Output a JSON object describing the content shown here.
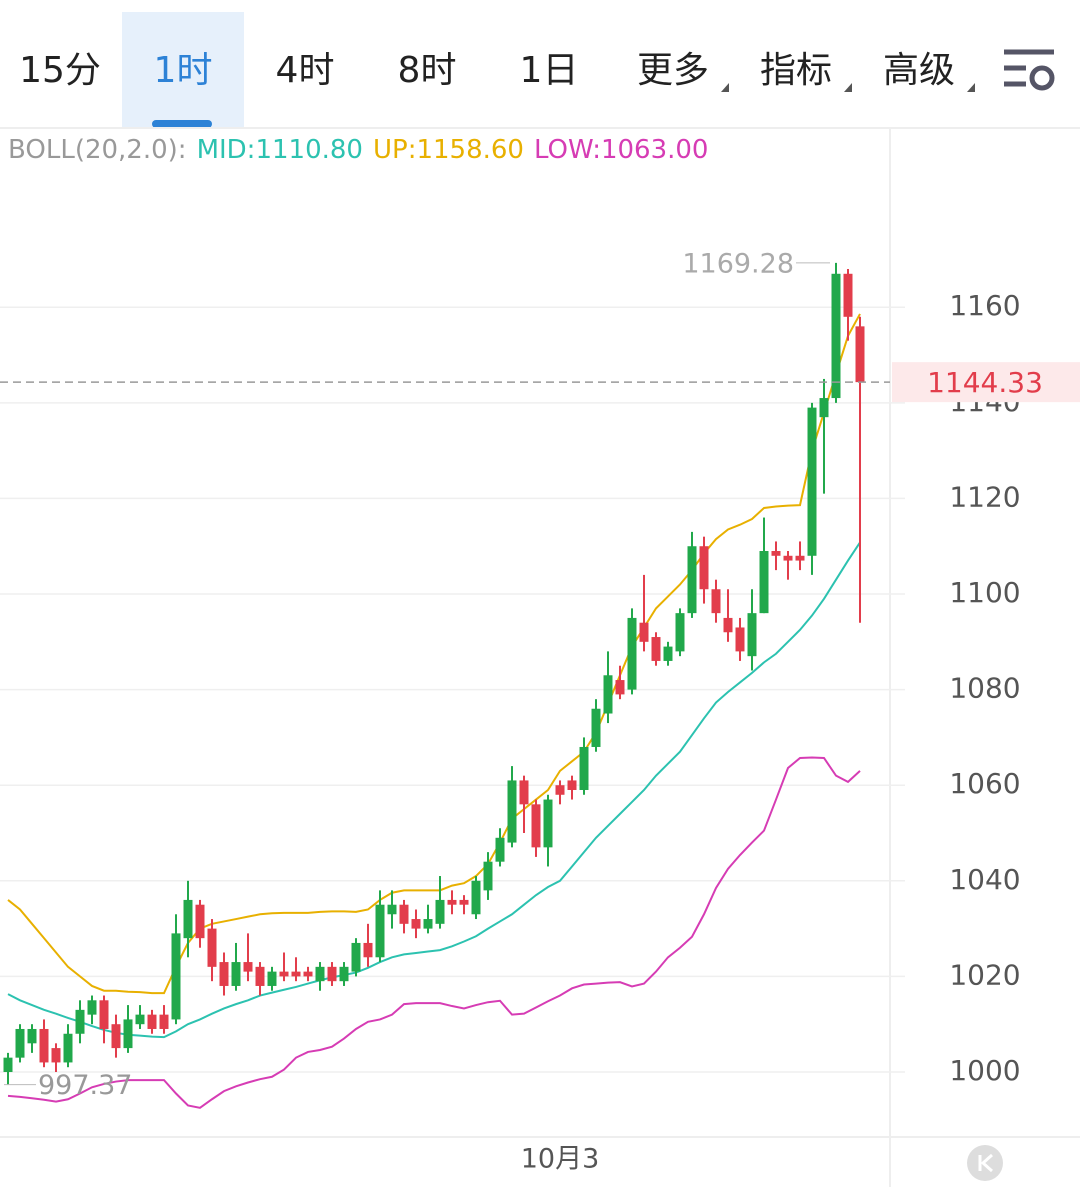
{
  "tabs": [
    "15分",
    "1时",
    "4时",
    "8时",
    "1日",
    "更多",
    "指标",
    "高级"
  ],
  "active_tab": 1,
  "chart_data": {
    "type": "candlestick",
    "indicator": "BOLL(20,2.0):",
    "up_color": "#21a84b",
    "down_color": "#e23d4b",
    "categories": [
      null,
      null,
      null,
      null,
      null,
      null,
      null,
      null,
      null,
      null,
      null,
      null,
      null,
      null,
      null,
      null,
      null,
      null,
      null,
      null,
      null,
      null,
      null,
      null,
      null,
      null,
      null,
      null,
      null,
      null,
      null,
      null,
      null,
      null,
      null,
      null,
      null,
      null,
      null,
      null,
      null,
      null,
      null,
      null,
      null,
      null,
      "10月3",
      null,
      null,
      null,
      null,
      null,
      null,
      null,
      null,
      null,
      null,
      null,
      null,
      null,
      null,
      null,
      null,
      null,
      null,
      null,
      null,
      null,
      null,
      null,
      null,
      null
    ],
    "open": [
      1000,
      1003,
      1006,
      1009,
      1005,
      1002,
      1008,
      1012,
      1015,
      1010,
      1005,
      1010,
      1012,
      1012,
      1011,
      1028,
      1035,
      1030,
      1023,
      1018,
      1023,
      1022,
      1018,
      1021,
      1021,
      1021,
      1019,
      1022,
      1019,
      1021,
      1027,
      1024,
      1033,
      1035,
      1032,
      1030,
      1031,
      1036,
      1036,
      1033,
      1038,
      1044,
      1048,
      1061,
      1056,
      1047,
      1060,
      1061,
      1059,
      1068,
      1075,
      1082,
      1080,
      1094,
      1091,
      1086,
      1088,
      1096,
      1110,
      1101,
      1095,
      1093,
      1087,
      1096,
      1109,
      1108,
      1108,
      1108,
      1137,
      1141,
      1167,
      1156
    ],
    "high": [
      1004,
      1010,
      1010,
      1011,
      1006,
      1010,
      1015,
      1016,
      1016,
      1012,
      1014,
      1014,
      1013,
      1014,
      1033,
      1040,
      1036,
      1032,
      1025,
      1027,
      1029,
      1023,
      1022,
      1025,
      1024,
      1022,
      1023,
      1023,
      1023,
      1028,
      1031,
      1038,
      1038,
      1036,
      1034,
      1035,
      1041,
      1038,
      1037,
      1041,
      1046,
      1051,
      1064,
      1062,
      1057,
      1058,
      1061,
      1062,
      1070,
      1078,
      1088,
      1085,
      1097,
      1104,
      1092,
      1090,
      1097,
      1113,
      1112,
      1103,
      1101,
      1095,
      1101,
      1116,
      1111,
      1109,
      1111,
      1140,
      1145,
      1169.28,
      1168,
      1158
    ],
    "low": [
      997.37,
      1002,
      1004,
      1001,
      1000,
      1001,
      1006,
      1010,
      1006,
      1003,
      1004,
      1009,
      1008,
      1008,
      1010,
      1024,
      1026,
      1019,
      1016,
      1017,
      1019,
      1016,
      1017,
      1019,
      1019,
      1019,
      1017,
      1018,
      1018,
      1020,
      1022,
      1023,
      1030,
      1029,
      1028,
      1029,
      1030,
      1033,
      1033,
      1032,
      1036,
      1043,
      1047,
      1050,
      1045,
      1043,
      1056,
      1057,
      1058,
      1067,
      1073,
      1078,
      1079,
      1088,
      1085,
      1085,
      1087,
      1095,
      1098,
      1094,
      1090,
      1086,
      1084,
      1096,
      1105,
      1103,
      1105,
      1104,
      1121,
      1140,
      1153,
      1094
    ],
    "close": [
      1003,
      1009,
      1009,
      1002,
      1002,
      1008,
      1013,
      1015,
      1009,
      1005,
      1011,
      1012,
      1009,
      1009,
      1029,
      1036,
      1028,
      1022,
      1018,
      1023,
      1021,
      1018,
      1021,
      1020,
      1020,
      1020,
      1022,
      1019,
      1022,
      1027,
      1024,
      1035,
      1035,
      1031,
      1030,
      1032,
      1036,
      1035,
      1035,
      1040,
      1044,
      1049,
      1061,
      1056,
      1047,
      1057,
      1058,
      1059,
      1068,
      1076,
      1083,
      1079,
      1095,
      1090,
      1086,
      1089,
      1096,
      1110,
      1101,
      1096,
      1092,
      1088,
      1096,
      1109,
      1108,
      1107,
      1107,
      1139,
      1141,
      1167,
      1158,
      1144.33
    ],
    "series": [
      {
        "name": "MID:",
        "color": "#2cc2b0",
        "values": [
          1016.3,
          1015,
          1014,
          1013,
          1012.2,
          1011.3,
          1010.5,
          1009.6,
          1008.8,
          1008.2,
          1007.8,
          1007.6,
          1007.4,
          1007.3,
          1008.5,
          1010,
          1011,
          1012.2,
          1013.3,
          1014.2,
          1015,
          1016,
          1016.6,
          1017.2,
          1017.8,
          1018.5,
          1019.2,
          1019.8,
          1020.3,
          1020.8,
          1021.8,
          1023,
          1024,
          1024.6,
          1024.9,
          1025.2,
          1025.5,
          1026.3,
          1027.3,
          1028.4,
          1030,
          1031.5,
          1033,
          1035,
          1037,
          1038.7,
          1040,
          1043,
          1046,
          1049,
          1051.5,
          1054,
          1056.5,
          1059,
          1062,
          1064.5,
          1067,
          1070.5,
          1074,
          1077.3,
          1079.5,
          1081.5,
          1083.5,
          1085.7,
          1087.5,
          1090,
          1092.5,
          1095.5,
          1099,
          1103,
          1107,
          1110.8
        ],
        "value_labels": [
          null,
          null,
          null,
          null,
          null,
          null,
          null,
          null,
          null,
          null,
          null,
          null,
          null,
          null,
          null,
          null,
          null,
          null,
          null,
          null,
          null,
          null,
          null,
          null,
          null,
          null,
          null,
          null,
          null,
          null,
          null,
          null,
          null,
          null,
          null,
          null,
          null,
          null,
          null,
          null,
          null,
          null,
          null,
          null,
          null,
          null,
          null,
          null,
          null,
          null,
          null,
          null,
          null,
          null,
          null,
          null,
          null,
          null,
          null,
          null,
          null,
          null,
          null,
          null,
          null,
          null,
          null,
          null,
          null,
          null,
          null,
          "1110.80"
        ]
      },
      {
        "name": "UP:",
        "color": "#e8b000",
        "values": [
          1036,
          1034,
          1031,
          1028,
          1025,
          1022,
          1020,
          1018,
          1017,
          1017,
          1016.8,
          1016.7,
          1016.5,
          1016.5,
          1022,
          1027,
          1030,
          1031,
          1031.5,
          1032,
          1032.5,
          1033,
          1033.2,
          1033.3,
          1033.3,
          1033.3,
          1033.5,
          1033.6,
          1033.6,
          1033.5,
          1034,
          1036,
          1037.5,
          1038,
          1038,
          1038,
          1038,
          1039,
          1039.5,
          1041,
          1043.5,
          1048,
          1053,
          1055,
          1057,
          1059,
          1063,
          1065,
          1067,
          1071,
          1077,
          1083,
          1089,
          1093,
          1097,
          1099.5,
          1102,
          1105,
          1108.5,
          1111.5,
          1113.5,
          1114.5,
          1115.7,
          1118,
          1118.3,
          1118.5,
          1118.6,
          1130,
          1138,
          1146,
          1154,
          1158.6
        ],
        "value_labels": [
          null,
          null,
          null,
          null,
          null,
          null,
          null,
          null,
          null,
          null,
          null,
          null,
          null,
          null,
          null,
          null,
          null,
          null,
          null,
          null,
          null,
          null,
          null,
          null,
          null,
          null,
          null,
          null,
          null,
          null,
          null,
          null,
          null,
          null,
          null,
          null,
          null,
          null,
          null,
          null,
          null,
          null,
          null,
          null,
          null,
          null,
          null,
          null,
          null,
          null,
          null,
          null,
          null,
          null,
          null,
          null,
          null,
          null,
          null,
          null,
          null,
          null,
          null,
          null,
          null,
          null,
          null,
          null,
          null,
          null,
          null,
          "1158.60"
        ]
      },
      {
        "name": "LOW:",
        "color": "#d63cb4",
        "values": [
          995,
          994.8,
          994.5,
          994.2,
          993.8,
          994.3,
          995.5,
          996.8,
          997.5,
          998,
          998.3,
          998.3,
          998.3,
          998.3,
          995.5,
          993,
          992.5,
          994.3,
          996,
          997,
          997.8,
          998.5,
          999,
          1000.5,
          1003,
          1004.2,
          1004.6,
          1005.3,
          1007,
          1009,
          1010.5,
          1011,
          1012,
          1014.2,
          1014.4,
          1014.4,
          1014.4,
          1013.8,
          1013.3,
          1014,
          1014.6,
          1014.9,
          1012,
          1012.2,
          1013.5,
          1014.8,
          1016,
          1017.5,
          1018.3,
          1018.5,
          1018.7,
          1018.8,
          1017.9,
          1018.5,
          1021,
          1024,
          1026,
          1028.3,
          1033,
          1038.5,
          1042.5,
          1045.4,
          1048,
          1050.5,
          1057,
          1063.6,
          1065.7,
          1065.8,
          1065.7,
          1062,
          1060.7,
          1063
        ],
        "value_labels": [
          null,
          null,
          null,
          null,
          null,
          null,
          null,
          null,
          null,
          null,
          null,
          null,
          null,
          null,
          null,
          null,
          null,
          null,
          null,
          null,
          null,
          null,
          null,
          null,
          null,
          null,
          null,
          null,
          null,
          null,
          null,
          null,
          null,
          null,
          null,
          null,
          null,
          null,
          null,
          null,
          null,
          null,
          null,
          null,
          null,
          null,
          null,
          null,
          null,
          null,
          null,
          null,
          null,
          null,
          null,
          null,
          null,
          null,
          null,
          null,
          null,
          null,
          null,
          null,
          null,
          null,
          null,
          null,
          null,
          null,
          null,
          "1063.00"
        ]
      }
    ],
    "ylim": [
      986.4,
      1197.5
    ],
    "yticks": [
      1000,
      1020,
      1040,
      1060,
      1080,
      1100,
      1120,
      1140,
      1160
    ],
    "grid": true
  }
}
